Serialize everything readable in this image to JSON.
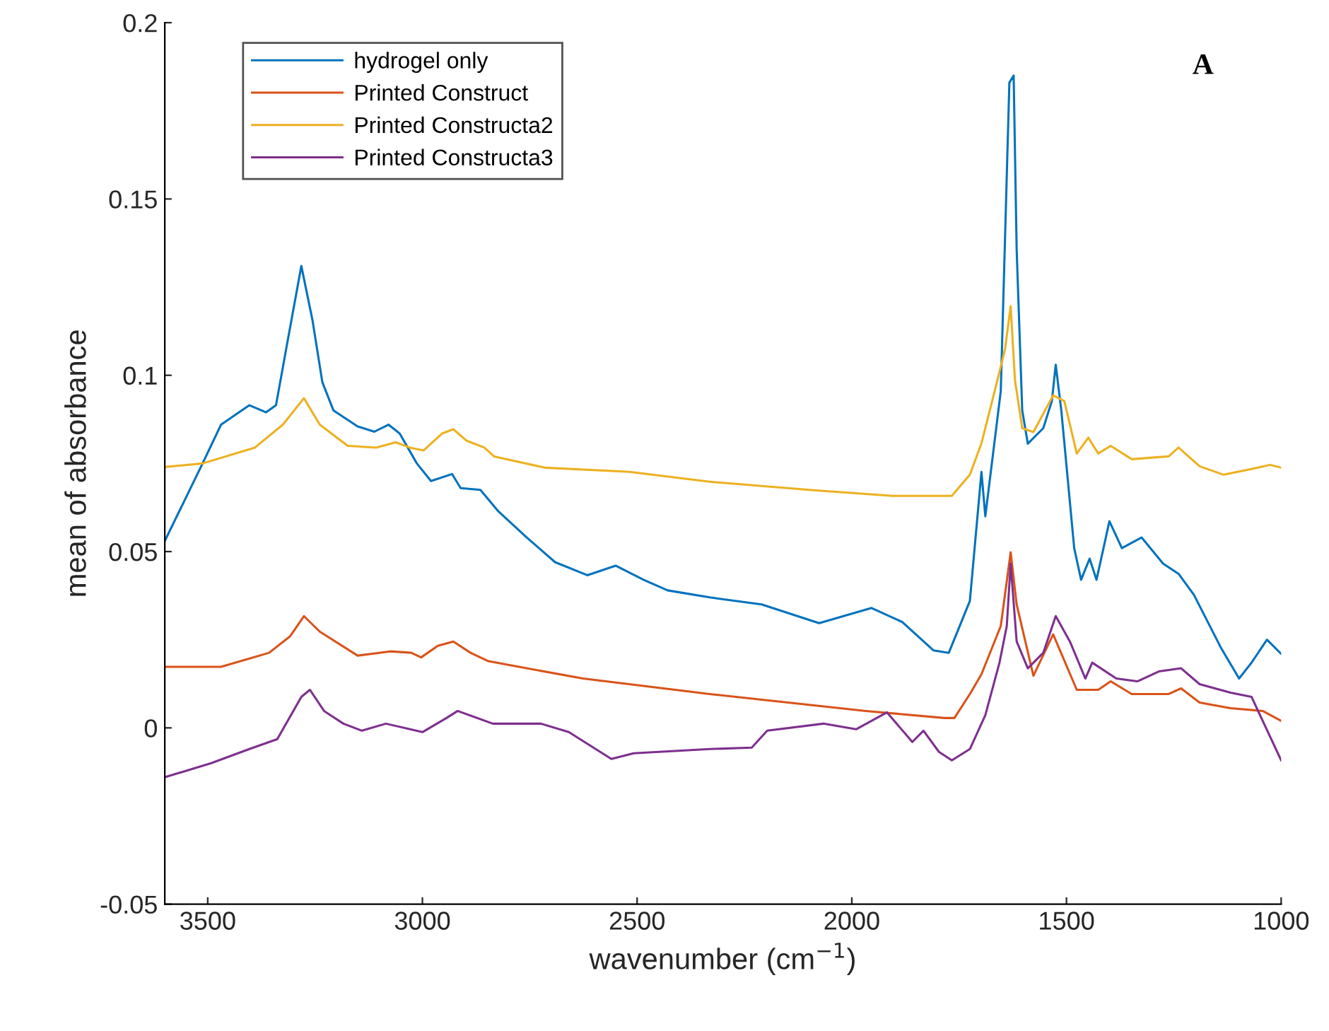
{
  "chart_data": {
    "type": "line",
    "xlabel": "wavenumber (cm$^{−1}$)",
    "ylabel": "mean of absorbance",
    "annotations": [
      "A"
    ],
    "xlim": [
      3600,
      1000
    ],
    "ylim": [
      -0.05,
      0.2
    ],
    "xticks": [
      3500,
      3000,
      2500,
      2000,
      1500,
      1000
    ],
    "yticks": [
      {
        "value": -0.05,
        "label": "-0.05"
      },
      0,
      0.05,
      0.1,
      0.15,
      0.2
    ],
    "grid": false,
    "legend": "top left",
    "line_style": "solid",
    "marker": "none",
    "series": [
      {
        "name": "hydrogel only",
        "color": "#0072bd",
        "x": [
          3600,
          3512,
          3469,
          3403,
          3364,
          3341,
          3315,
          3282,
          3256,
          3233,
          3207,
          3151,
          3112,
          3079,
          3053,
          3013,
          2980,
          2931,
          2911,
          2865,
          2823,
          2757,
          2691,
          2616,
          2550,
          2485,
          2429,
          2331,
          2210,
          2076,
          1954,
          1882,
          1810,
          1774,
          1725,
          1698,
          1689,
          1653,
          1633,
          1623,
          1616,
          1603,
          1590,
          1554,
          1534,
          1525,
          1512,
          1482,
          1466,
          1446,
          1430,
          1400,
          1371,
          1325,
          1275,
          1239,
          1203,
          1141,
          1098,
          1069,
          1033,
          1000
        ],
        "values": [
          0.053,
          0.075,
          0.086,
          0.0915,
          0.0895,
          0.0915,
          0.109,
          0.131,
          0.1156,
          0.098,
          0.09,
          0.0855,
          0.084,
          0.086,
          0.0835,
          0.075,
          0.07,
          0.072,
          0.068,
          0.0675,
          0.0614,
          0.054,
          0.047,
          0.0433,
          0.046,
          0.042,
          0.039,
          0.037,
          0.035,
          0.0297,
          0.034,
          0.03,
          0.022,
          0.0213,
          0.036,
          0.0726,
          0.06,
          0.0955,
          0.183,
          0.185,
          0.1356,
          0.09,
          0.0806,
          0.085,
          0.0927,
          0.103,
          0.09,
          0.051,
          0.042,
          0.048,
          0.042,
          0.0586,
          0.051,
          0.054,
          0.0466,
          0.0437,
          0.0377,
          0.0229,
          0.014,
          0.0185,
          0.025,
          0.021
        ]
      },
      {
        "name": "Printed Construct",
        "color": "#d95319",
        "x": [
          3600,
          3469,
          3357,
          3308,
          3276,
          3239,
          3151,
          3075,
          3026,
          3003,
          2964,
          2928,
          2888,
          2846,
          2626,
          2331,
          1967,
          1784,
          1761,
          1725,
          1698,
          1653,
          1630,
          1616,
          1577,
          1531,
          1476,
          1426,
          1397,
          1348,
          1262,
          1233,
          1190,
          1118,
          1043,
          1000
        ],
        "values": [
          0.0173,
          0.0173,
          0.0213,
          0.026,
          0.0317,
          0.0273,
          0.0205,
          0.0217,
          0.0213,
          0.02,
          0.0233,
          0.0245,
          0.0213,
          0.0189,
          0.014,
          0.0096,
          0.0048,
          0.0028,
          0.0028,
          0.0096,
          0.0152,
          0.0289,
          0.0498,
          0.035,
          0.0148,
          0.0265,
          0.0108,
          0.0108,
          0.0132,
          0.0096,
          0.0096,
          0.0112,
          0.0072,
          0.0056,
          0.0048,
          0.002
        ]
      },
      {
        "name": "Printed Constructa2",
        "color": "#edb120",
        "x": [
          3600,
          3512,
          3390,
          3325,
          3276,
          3239,
          3174,
          3108,
          3062,
          3030,
          2997,
          2954,
          2928,
          2898,
          2856,
          2833,
          2715,
          2518,
          2331,
          2089,
          1905,
          1767,
          1725,
          1698,
          1662,
          1643,
          1630,
          1620,
          1603,
          1577,
          1531,
          1505,
          1476,
          1449,
          1426,
          1397,
          1348,
          1262,
          1239,
          1190,
          1134,
          1069,
          1026,
          1000
        ],
        "values": [
          0.074,
          0.075,
          0.0795,
          0.086,
          0.0935,
          0.086,
          0.08,
          0.0795,
          0.081,
          0.0795,
          0.0787,
          0.0835,
          0.0847,
          0.0815,
          0.0795,
          0.077,
          0.0738,
          0.0726,
          0.0698,
          0.0674,
          0.0658,
          0.0658,
          0.0718,
          0.0807,
          0.098,
          0.1075,
          0.1196,
          0.0987,
          0.085,
          0.0839,
          0.0943,
          0.0927,
          0.0778,
          0.0823,
          0.0778,
          0.08,
          0.0762,
          0.077,
          0.0795,
          0.0742,
          0.0718,
          0.0734,
          0.0746,
          0.0738
        ]
      },
      {
        "name": "Printed Constructa3",
        "color": "#7e2f8e",
        "x": [
          3600,
          3492,
          3403,
          3338,
          3282,
          3262,
          3229,
          3184,
          3141,
          3085,
          3000,
          2944,
          2918,
          2836,
          2724,
          2659,
          2560,
          2508,
          2331,
          2233,
          2197,
          2066,
          1990,
          1918,
          1859,
          1833,
          1797,
          1767,
          1725,
          1689,
          1656,
          1639,
          1630,
          1616,
          1590,
          1554,
          1525,
          1492,
          1456,
          1440,
          1384,
          1335,
          1285,
          1233,
          1190,
          1118,
          1069,
          1043,
          1000
        ],
        "values": [
          -0.014,
          -0.01,
          -0.006,
          -0.0032,
          0.0088,
          0.0108,
          0.0048,
          0.0012,
          -0.0008,
          0.0012,
          -0.0012,
          0.0028,
          0.0048,
          0.0012,
          0.0012,
          -0.0012,
          -0.0088,
          -0.0072,
          -0.006,
          -0.0056,
          -0.0008,
          0.0012,
          -0.0004,
          0.0044,
          -0.004,
          -0.0008,
          -0.0068,
          -0.0092,
          -0.006,
          0.0036,
          0.0185,
          0.0289,
          0.0466,
          0.0245,
          0.0169,
          0.0213,
          0.0317,
          0.0245,
          0.014,
          0.0185,
          0.014,
          0.0132,
          0.016,
          0.0169,
          0.0124,
          0.01,
          0.0088,
          0.002,
          -0.0092
        ]
      }
    ]
  }
}
